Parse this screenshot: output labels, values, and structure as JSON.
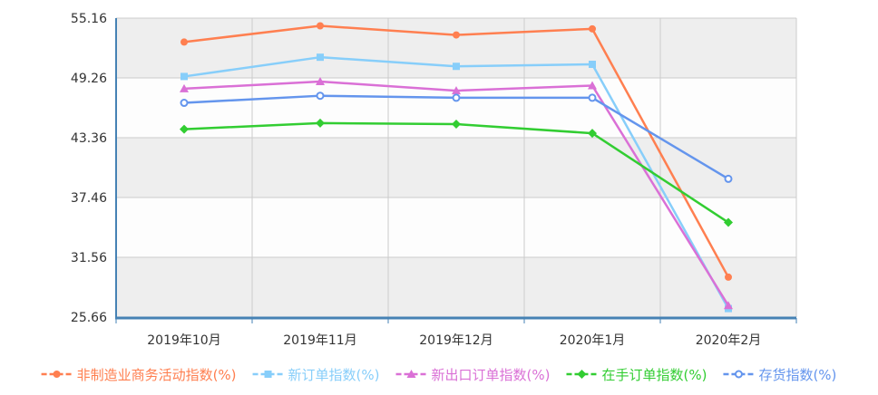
{
  "chart_data": {
    "type": "line",
    "categories": [
      "2019年10月",
      "2019年11月",
      "2019年12月",
      "2020年1月",
      "2020年2月"
    ],
    "y_ticks": [
      "55.16",
      "49.26",
      "43.36",
      "37.46",
      "31.56",
      "25.66"
    ],
    "ylim": [
      25.66,
      55.16
    ],
    "grid": true,
    "legend_position": "bottom",
    "series": [
      {
        "name": "非制造业商务活动指数(%)",
        "color": "#ff7f50",
        "marker": "circle",
        "values": [
          52.8,
          54.4,
          53.5,
          54.1,
          29.6
        ]
      },
      {
        "name": "新订单指数(%)",
        "color": "#87cefa",
        "marker": "square",
        "values": [
          49.4,
          51.3,
          50.4,
          50.6,
          26.5
        ]
      },
      {
        "name": "新出口订单指数(%)",
        "color": "#da70d6",
        "marker": "triangle",
        "values": [
          48.2,
          48.9,
          48.0,
          48.5,
          26.8
        ]
      },
      {
        "name": "在手订单指数(%)",
        "color": "#32cd32",
        "marker": "diamond",
        "values": [
          44.2,
          44.8,
          44.7,
          43.8,
          35.0
        ]
      },
      {
        "name": "存货指数(%)",
        "color": "#6495ed",
        "marker": "hollow-circle",
        "values": [
          46.8,
          47.5,
          47.3,
          47.3,
          39.3
        ]
      }
    ]
  }
}
